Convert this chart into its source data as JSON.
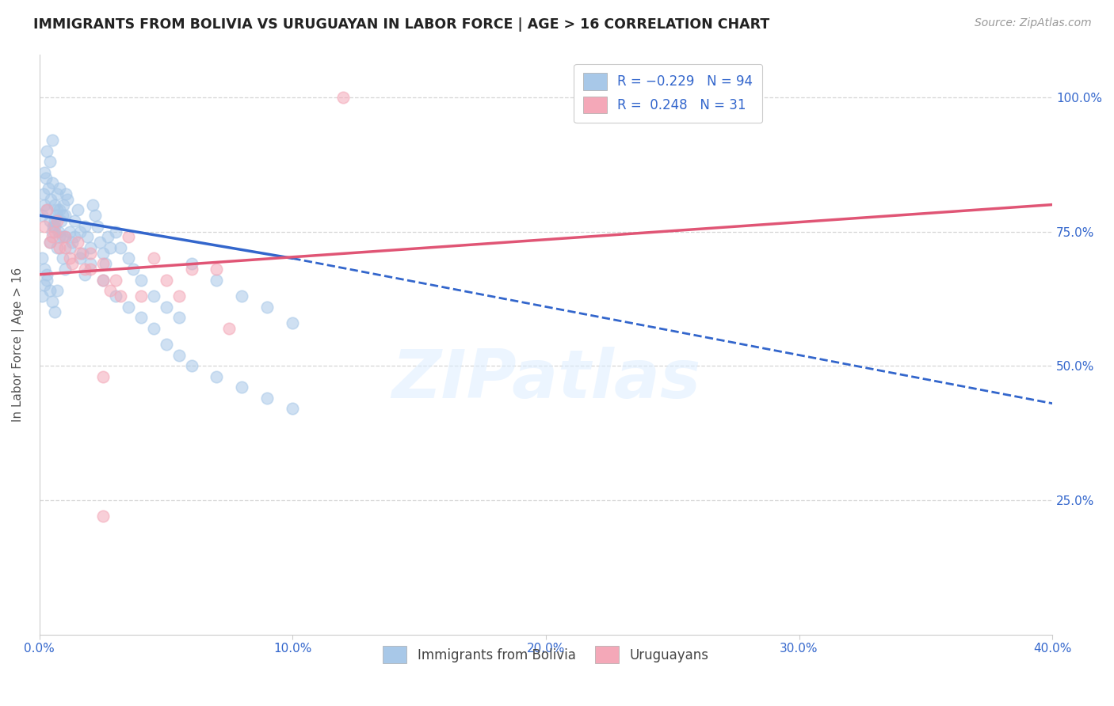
{
  "title": "IMMIGRANTS FROM BOLIVIA VS URUGUAYAN IN LABOR FORCE | AGE > 16 CORRELATION CHART",
  "source": "Source: ZipAtlas.com",
  "ylabel": "In Labor Force | Age > 16",
  "x_min": 0.0,
  "x_max": 40.0,
  "y_min": 0.0,
  "y_max": 108.0,
  "y_ticks": [
    25.0,
    50.0,
    75.0,
    100.0
  ],
  "x_ticks": [
    0.0,
    10.0,
    20.0,
    30.0,
    40.0
  ],
  "x_tick_labels": [
    "0.0%",
    "10.0%",
    "20.0%",
    "30.0%",
    "40.0%"
  ],
  "y_tick_labels": [
    "25.0%",
    "50.0%",
    "75.0%",
    "100.0%"
  ],
  "blue_color": "#a8c8e8",
  "pink_color": "#f4a8b8",
  "blue_line_color": "#3366cc",
  "pink_line_color": "#e05575",
  "watermark": "ZIPatlas",
  "blue_scatter": [
    [
      0.1,
      78
    ],
    [
      0.15,
      82
    ],
    [
      0.2,
      80
    ],
    [
      0.25,
      85
    ],
    [
      0.3,
      79
    ],
    [
      0.35,
      83
    ],
    [
      0.4,
      77
    ],
    [
      0.45,
      81
    ],
    [
      0.5,
      84
    ],
    [
      0.55,
      76
    ],
    [
      0.6,
      80
    ],
    [
      0.65,
      78
    ],
    [
      0.7,
      82
    ],
    [
      0.75,
      75
    ],
    [
      0.8,
      79
    ],
    [
      0.85,
      77
    ],
    [
      0.9,
      74
    ],
    [
      0.95,
      80
    ],
    [
      1.0,
      78
    ],
    [
      1.05,
      82
    ],
    [
      0.2,
      86
    ],
    [
      0.3,
      90
    ],
    [
      0.4,
      88
    ],
    [
      0.5,
      92
    ],
    [
      0.6,
      76
    ],
    [
      0.7,
      79
    ],
    [
      0.8,
      83
    ],
    [
      0.9,
      78
    ],
    [
      1.0,
      74
    ],
    [
      1.1,
      81
    ],
    [
      1.2,
      75
    ],
    [
      1.3,
      73
    ],
    [
      1.4,
      77
    ],
    [
      1.5,
      79
    ],
    [
      1.6,
      75
    ],
    [
      1.7,
      71
    ],
    [
      1.8,
      76
    ],
    [
      1.9,
      74
    ],
    [
      2.0,
      72
    ],
    [
      2.1,
      80
    ],
    [
      2.2,
      78
    ],
    [
      2.3,
      76
    ],
    [
      2.4,
      73
    ],
    [
      2.5,
      71
    ],
    [
      2.6,
      69
    ],
    [
      2.7,
      74
    ],
    [
      2.8,
      72
    ],
    [
      3.0,
      75
    ],
    [
      3.2,
      72
    ],
    [
      3.5,
      70
    ],
    [
      3.7,
      68
    ],
    [
      4.0,
      66
    ],
    [
      4.5,
      63
    ],
    [
      5.0,
      61
    ],
    [
      5.5,
      59
    ],
    [
      6.0,
      69
    ],
    [
      7.0,
      66
    ],
    [
      8.0,
      63
    ],
    [
      9.0,
      61
    ],
    [
      10.0,
      58
    ],
    [
      0.1,
      70
    ],
    [
      0.2,
      68
    ],
    [
      0.3,
      66
    ],
    [
      0.4,
      73
    ],
    [
      0.5,
      75
    ],
    [
      0.6,
      77
    ],
    [
      0.7,
      72
    ],
    [
      0.8,
      74
    ],
    [
      0.9,
      70
    ],
    [
      1.0,
      68
    ],
    [
      1.2,
      72
    ],
    [
      1.4,
      74
    ],
    [
      1.6,
      70
    ],
    [
      1.8,
      67
    ],
    [
      2.0,
      69
    ],
    [
      2.5,
      66
    ],
    [
      3.0,
      63
    ],
    [
      3.5,
      61
    ],
    [
      4.0,
      59
    ],
    [
      4.5,
      57
    ],
    [
      5.0,
      54
    ],
    [
      5.5,
      52
    ],
    [
      6.0,
      50
    ],
    [
      7.0,
      48
    ],
    [
      8.0,
      46
    ],
    [
      9.0,
      44
    ],
    [
      10.0,
      42
    ],
    [
      0.1,
      63
    ],
    [
      0.2,
      65
    ],
    [
      0.3,
      67
    ],
    [
      0.4,
      64
    ],
    [
      0.5,
      62
    ],
    [
      0.6,
      60
    ],
    [
      0.7,
      64
    ]
  ],
  "pink_scatter": [
    [
      0.2,
      76
    ],
    [
      0.4,
      73
    ],
    [
      0.6,
      75
    ],
    [
      0.8,
      72
    ],
    [
      1.0,
      74
    ],
    [
      1.2,
      70
    ],
    [
      1.5,
      73
    ],
    [
      1.8,
      68
    ],
    [
      2.0,
      71
    ],
    [
      2.5,
      69
    ],
    [
      3.0,
      66
    ],
    [
      3.5,
      74
    ],
    [
      4.0,
      63
    ],
    [
      5.0,
      66
    ],
    [
      6.0,
      68
    ],
    [
      0.3,
      79
    ],
    [
      0.5,
      74
    ],
    [
      0.7,
      77
    ],
    [
      1.0,
      72
    ],
    [
      1.3,
      69
    ],
    [
      1.6,
      71
    ],
    [
      2.0,
      68
    ],
    [
      2.5,
      66
    ],
    [
      2.8,
      64
    ],
    [
      3.2,
      63
    ],
    [
      4.5,
      70
    ],
    [
      5.5,
      63
    ],
    [
      7.0,
      68
    ],
    [
      7.5,
      57
    ],
    [
      2.5,
      48
    ],
    [
      12.0,
      100
    ]
  ],
  "pink_outlier_low": [
    2.5,
    22
  ],
  "blue_trend_x0": 0.0,
  "blue_trend_y0": 78.0,
  "blue_trend_x1": 10.0,
  "blue_trend_y1": 70.0,
  "blue_dashed_x0": 10.0,
  "blue_dashed_y0": 70.0,
  "blue_dashed_x1": 40.0,
  "blue_dashed_y1": 43.0,
  "pink_trend_x0": 0.0,
  "pink_trend_y0": 67.0,
  "pink_trend_x1": 40.0,
  "pink_trend_y1": 80.0
}
